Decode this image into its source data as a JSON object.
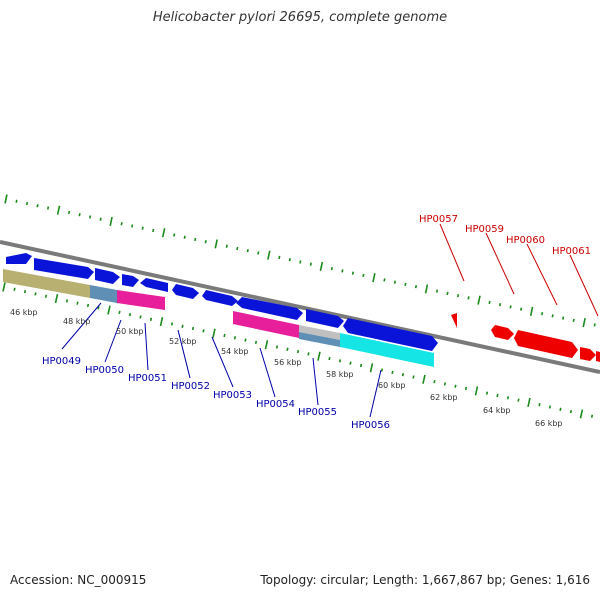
{
  "title": "Helicobacter pylori 26695, complete genome",
  "footer": {
    "accession": "Accession: NC_000915",
    "topology": "Topology: circular; Length: 1,667,867 bp; Genes: 1,616"
  },
  "colors": {
    "genome_line": "#808080",
    "ticks": "#1a8a1a",
    "forward_gene": "#0000dd",
    "reverse_gene": "#ee0000",
    "label_forward": "#0000aa",
    "label_reverse": "#cc0000",
    "kbp_label": "#333333"
  },
  "kbp_labels": [
    "46 kbp",
    "48 kbp",
    "50 kbp",
    "52 kbp",
    "54 kbp",
    "56 kbp",
    "58 kbp",
    "60 kbp",
    "62 kbp",
    "64 kbp",
    "66 kbp"
  ],
  "lower_gene_labels": [
    "HP0049",
    "HP0050",
    "HP0051",
    "HP0052",
    "HP0053",
    "HP0054",
    "HP0055",
    "HP0056"
  ],
  "upper_gene_labels": [
    "HP0057",
    "HP0059",
    "HP0060",
    "HP0061"
  ]
}
